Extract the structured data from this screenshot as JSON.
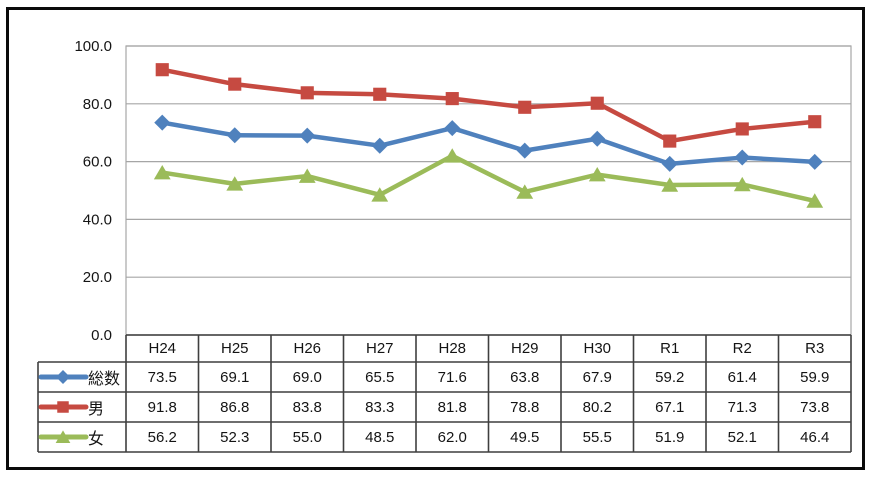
{
  "chart_data": {
    "type": "line",
    "title": "",
    "xlabel": "",
    "ylabel": "",
    "categories": [
      "H24",
      "H25",
      "H26",
      "H27",
      "H28",
      "H29",
      "H30",
      "R1",
      "R2",
      "R3"
    ],
    "series": [
      {
        "name": "総数",
        "color": "#4F81BD",
        "marker": "diamond",
        "values": [
          73.5,
          69.1,
          69.0,
          65.5,
          71.6,
          63.8,
          67.9,
          59.2,
          61.4,
          59.9
        ],
        "display": [
          "73.5",
          "69.1",
          "69.0",
          "65.5",
          "71.6",
          "63.8",
          "67.9",
          "59.2",
          "61.4",
          "59.9"
        ]
      },
      {
        "name": "男",
        "color": "#C64A41",
        "marker": "square",
        "values": [
          91.8,
          86.8,
          83.8,
          83.3,
          81.8,
          78.8,
          80.2,
          67.1,
          71.3,
          73.8
        ],
        "display": [
          "91.8",
          "86.8",
          "83.8",
          "83.3",
          "81.8",
          "78.8",
          "80.2",
          "67.1",
          "71.3",
          "73.8"
        ]
      },
      {
        "name": "女",
        "color": "#9BBB59",
        "marker": "triangle",
        "values": [
          56.2,
          52.3,
          55.0,
          48.5,
          62.0,
          49.5,
          55.5,
          51.9,
          52.1,
          46.4
        ],
        "display": [
          "56.2",
          "52.3",
          "55.0",
          "48.5",
          "62.0",
          "49.5",
          "55.5",
          "51.9",
          "52.1",
          "46.4"
        ]
      }
    ],
    "yticks": [
      "100.0",
      "80.0",
      "60.0",
      "40.0",
      "20.0",
      "0.0"
    ],
    "ylim": [
      0,
      100
    ],
    "grid": true,
    "legend_position": "table-left"
  },
  "colors": {
    "grid_line": "#A6A6A6",
    "table_border": "#3F3F3F",
    "axis_text": "#141414",
    "frame": "#0A0A0A",
    "background": "#FFFFFF"
  }
}
